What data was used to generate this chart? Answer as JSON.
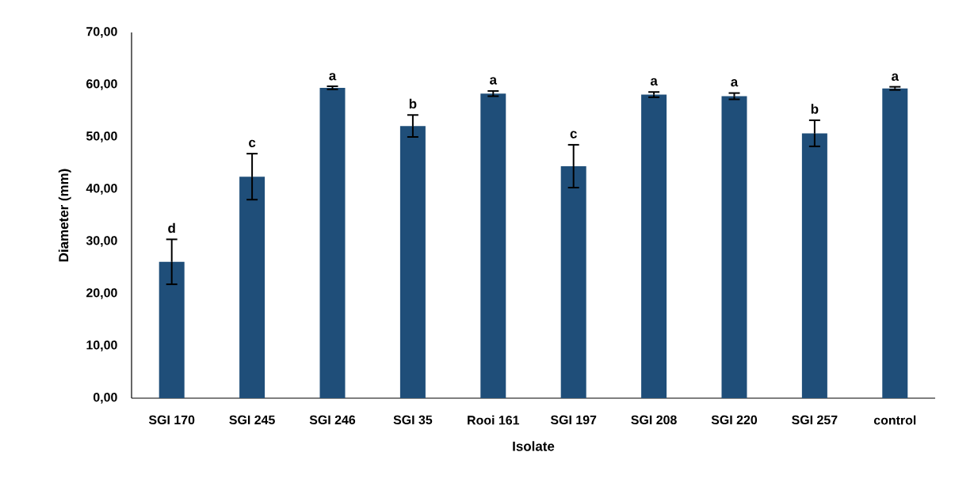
{
  "chart_data": {
    "type": "bar",
    "xlabel": "Isolate",
    "ylabel": "Diameter (mm)",
    "categories": [
      "SGI 170",
      "SGI 245",
      "SGI 246",
      "SGI 35",
      "Rooi 161",
      "SGI 197",
      "SGI 208",
      "SGI 220",
      "SGI 257",
      "control"
    ],
    "values": [
      26.1,
      42.4,
      59.4,
      52.1,
      58.3,
      44.4,
      58.1,
      57.8,
      50.7,
      59.3
    ],
    "errors": [
      4.3,
      4.4,
      0.3,
      2.1,
      0.5,
      4.1,
      0.5,
      0.6,
      2.5,
      0.3
    ],
    "color": "#1f4e79",
    "ylim": [
      0,
      70
    ],
    "yticks": [
      {
        "value": 0,
        "label": "0,00"
      },
      {
        "value": 10,
        "label": "10,00"
      },
      {
        "value": 20,
        "label": "20,00"
      },
      {
        "value": 30,
        "label": "30,00"
      },
      {
        "value": 40,
        "label": "40,00"
      },
      {
        "value": 50,
        "label": "50,00"
      },
      {
        "value": 60,
        "label": "60,00"
      },
      {
        "value": 70,
        "label": "70,00"
      }
    ],
    "grid": false,
    "annotations": [
      {
        "text": "d",
        "x": "SGI 170",
        "y": 30.4
      },
      {
        "text": "c",
        "x": "SGI 245",
        "y": 46.8
      },
      {
        "text": "a",
        "x": "SGI 246",
        "y": 59.6
      },
      {
        "text": "b",
        "x": "SGI 35",
        "y": 54.2
      },
      {
        "text": "a",
        "x": "Rooi 161",
        "y": 58.8
      },
      {
        "text": "c",
        "x": "SGI 197",
        "y": 48.5
      },
      {
        "text": "a",
        "x": "SGI 208",
        "y": 58.6
      },
      {
        "text": "a",
        "x": "SGI 220",
        "y": 58.4
      },
      {
        "text": "b",
        "x": "SGI 257",
        "y": 53.2
      },
      {
        "text": "a",
        "x": "control",
        "y": 59.5
      }
    ]
  }
}
